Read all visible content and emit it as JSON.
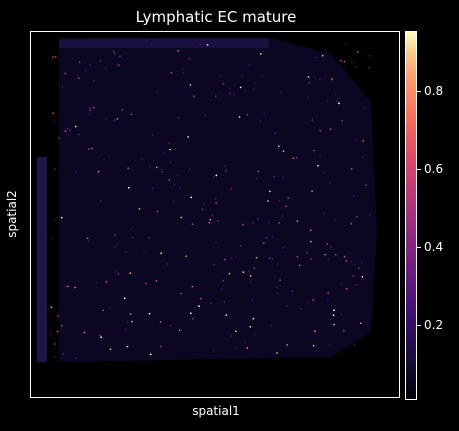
{
  "chart_data": {
    "type": "scatter",
    "title": "Lymphatic EC mature",
    "xlabel": "spatial1",
    "ylabel": "spatial2",
    "colorbar": {
      "colormap": "magma",
      "range": [
        0.0,
        0.95
      ],
      "ticks": [
        "0.2",
        "0.4",
        "0.6",
        "0.8"
      ]
    },
    "grid": false,
    "background": "#000000",
    "colors": {
      "low": "#000004",
      "tissue": "#0b0722",
      "edge_band": "#251a5a",
      "high": "#fcfdbf"
    }
  }
}
